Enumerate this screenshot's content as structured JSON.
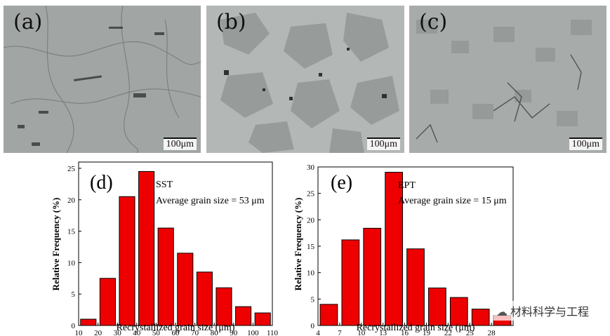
{
  "micrographs": [
    {
      "label": "(a)",
      "scale": "100μm"
    },
    {
      "label": "(b)",
      "scale": "100μm"
    },
    {
      "label": "(c)",
      "scale": "100μm"
    }
  ],
  "chart_data": [
    {
      "type": "bar",
      "panel_label": "(d)",
      "series_label": "SST",
      "annotation": "Average grain size = 53 μm",
      "xlabel": "Recrystallized grain size (μm)",
      "ylabel": "Relative Frequency (%)",
      "x": [
        15,
        25,
        35,
        45,
        55,
        65,
        75,
        85,
        95,
        105
      ],
      "values": [
        1.0,
        7.5,
        20.5,
        24.5,
        15.5,
        11.5,
        8.5,
        6.0,
        3.0,
        2.0
      ],
      "bar_width": 8,
      "xlim": [
        10,
        110
      ],
      "ylim": [
        0,
        26
      ],
      "xticks": [
        10,
        20,
        30,
        40,
        50,
        60,
        70,
        80,
        90,
        100,
        110
      ],
      "yticks": [
        0,
        5,
        10,
        15,
        20,
        25
      ],
      "color": "#ee0000"
    },
    {
      "type": "bar",
      "panel_label": "(e)",
      "series_label": "EPT",
      "annotation": "Average grain size = 15 μm",
      "xlabel": "Recrystallized grain size (μm)",
      "ylabel": "Relative Frequency (%)",
      "x": [
        5.5,
        8.5,
        11.5,
        14.5,
        17.5,
        20.5,
        23.5,
        26.5,
        29.5
      ],
      "values": [
        4.0,
        16.2,
        18.4,
        29.0,
        14.5,
        7.1,
        5.3,
        3.1,
        1.9
      ],
      "bar_width": 2.4,
      "xlim": [
        4,
        31
      ],
      "ylim": [
        0,
        30
      ],
      "xticks": [
        4,
        7,
        10,
        13,
        16,
        19,
        22,
        25,
        28
      ],
      "yticks": [
        0,
        5,
        10,
        15,
        20,
        25,
        30
      ],
      "color": "#ee0000"
    }
  ],
  "watermark": {
    "text": "材料科学与工程",
    "icon": "wechat-icon"
  }
}
